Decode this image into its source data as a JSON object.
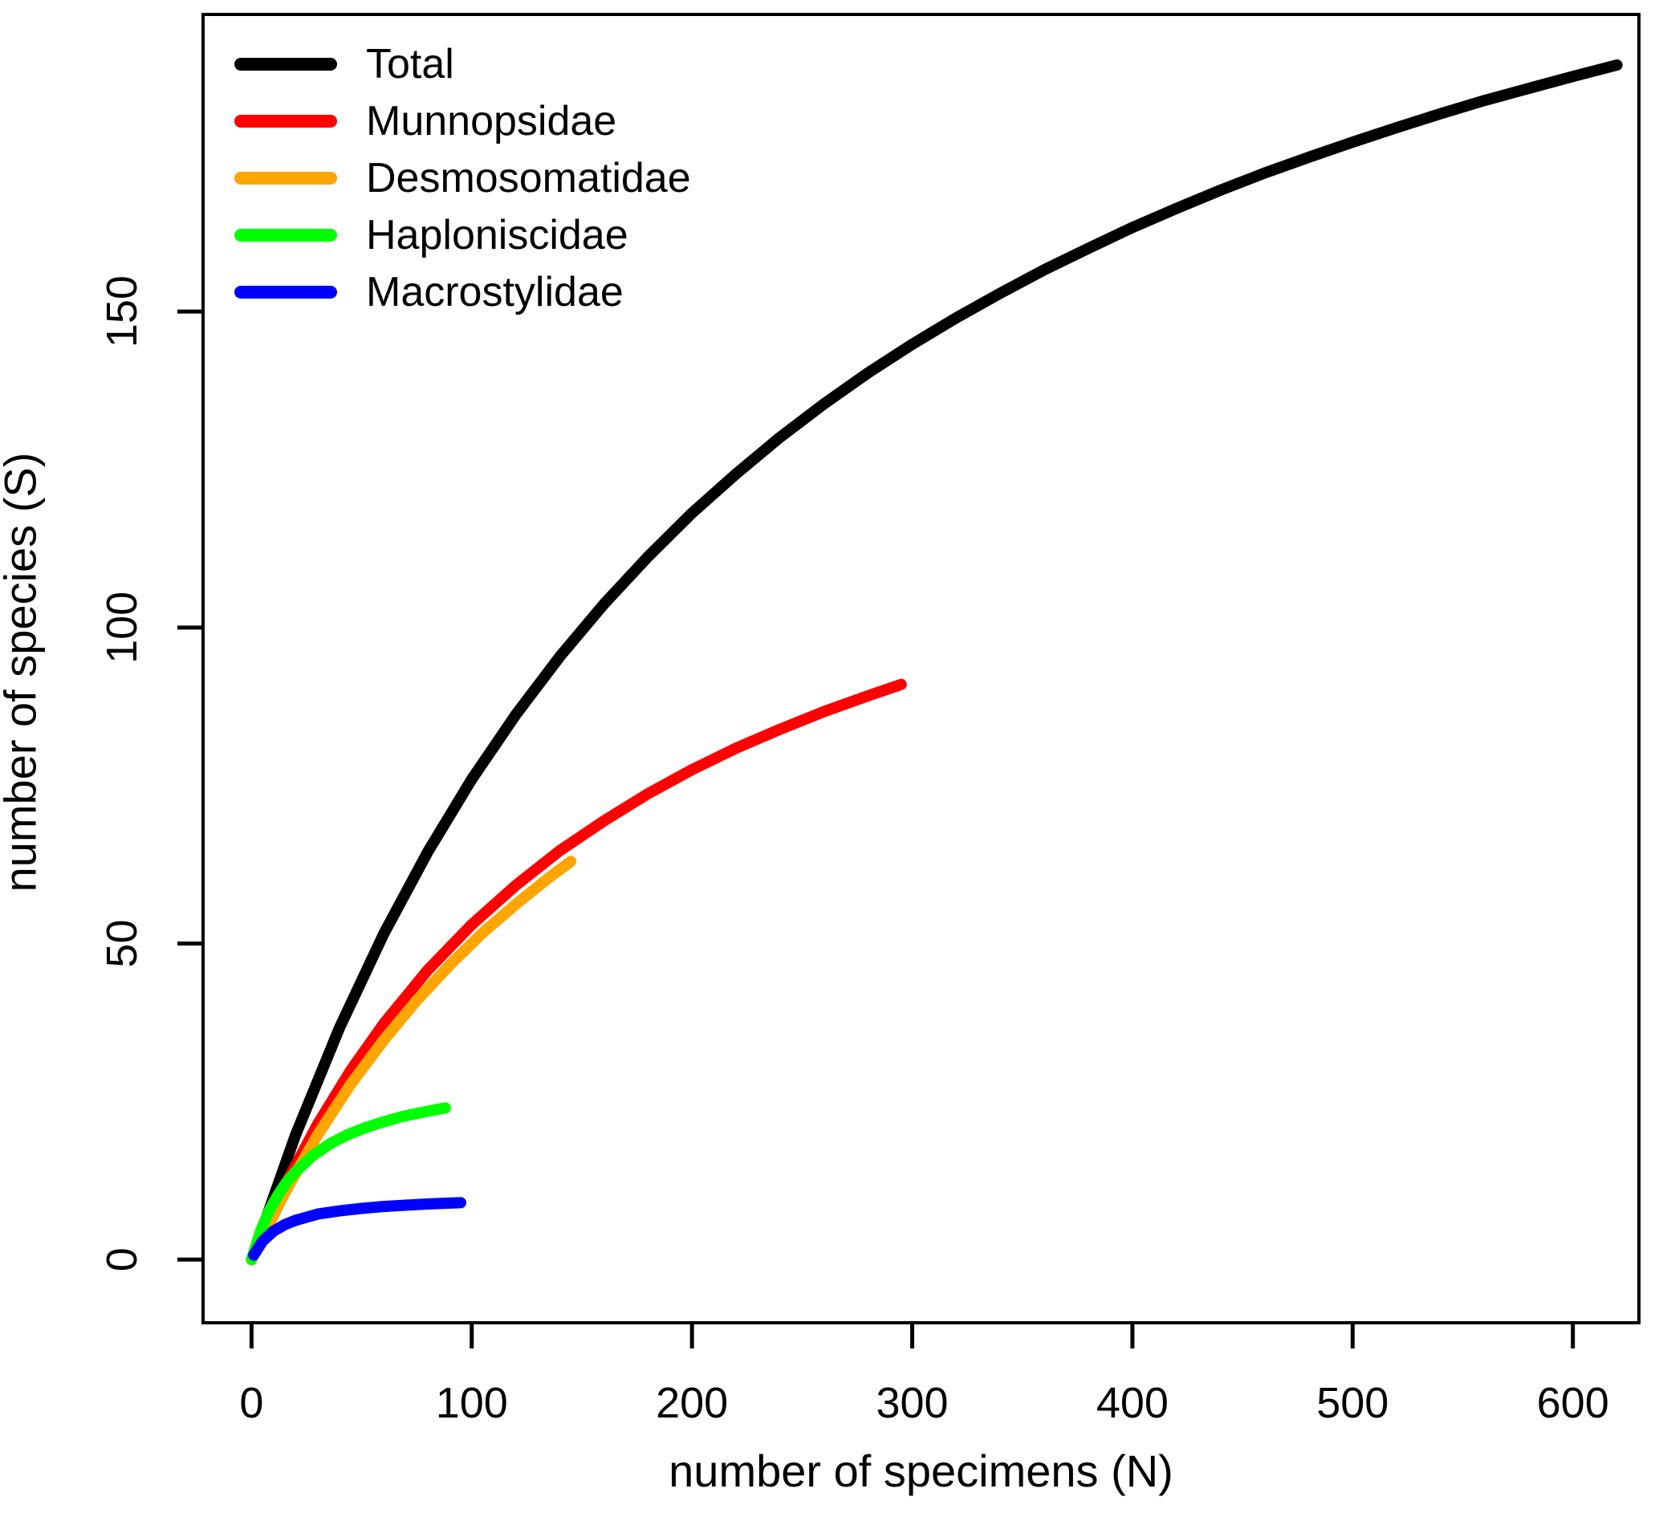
{
  "chart_data": {
    "type": "line",
    "title": "",
    "xlabel": "number of specimens (N)",
    "ylabel": "number of species (S)",
    "xlim": [
      -22,
      630
    ],
    "ylim": [
      -10,
      197
    ],
    "xticks": [
      0,
      100,
      200,
      300,
      400,
      500,
      600
    ],
    "yticks": [
      0,
      50,
      100,
      150
    ],
    "grid": false,
    "legend_position": "top-left",
    "series": [
      {
        "name": "Total",
        "color": "#000000",
        "points": [
          [
            0,
            0
          ],
          [
            20,
            19.7
          ],
          [
            40,
            36.7
          ],
          [
            60,
            51.5
          ],
          [
            80,
            64.5
          ],
          [
            100,
            76.0
          ],
          [
            120,
            86.2
          ],
          [
            140,
            95.4
          ],
          [
            160,
            103.7
          ],
          [
            180,
            111.2
          ],
          [
            200,
            118.1
          ],
          [
            220,
            124.3
          ],
          [
            240,
            130.1
          ],
          [
            260,
            135.4
          ],
          [
            280,
            140.3
          ],
          [
            300,
            144.8
          ],
          [
            320,
            149.0
          ],
          [
            340,
            152.9
          ],
          [
            360,
            156.6
          ],
          [
            380,
            160.0
          ],
          [
            400,
            163.3
          ],
          [
            420,
            166.3
          ],
          [
            440,
            169.2
          ],
          [
            460,
            171.9
          ],
          [
            480,
            174.4
          ],
          [
            500,
            176.8
          ],
          [
            520,
            179.1
          ],
          [
            540,
            181.3
          ],
          [
            560,
            183.4
          ],
          [
            580,
            185.3
          ],
          [
            600,
            187.2
          ],
          [
            620,
            189.0
          ]
        ]
      },
      {
        "name": "Munnopsidae",
        "color": "#FF0000",
        "points": [
          [
            0,
            0
          ],
          [
            15,
            11.6
          ],
          [
            30,
            21.4
          ],
          [
            45,
            29.9
          ],
          [
            60,
            37.3
          ],
          [
            80,
            45.8
          ],
          [
            100,
            53.0
          ],
          [
            120,
            59.2
          ],
          [
            140,
            64.7
          ],
          [
            160,
            69.4
          ],
          [
            180,
            73.7
          ],
          [
            200,
            77.5
          ],
          [
            220,
            80.9
          ],
          [
            240,
            83.9
          ],
          [
            260,
            86.7
          ],
          [
            280,
            89.2
          ],
          [
            295,
            91.0
          ]
        ]
      },
      {
        "name": "Desmosomatidae",
        "color": "#FFA500",
        "points": [
          [
            0,
            0
          ],
          [
            15,
            10.5
          ],
          [
            30,
            19.7
          ],
          [
            45,
            27.7
          ],
          [
            60,
            34.7
          ],
          [
            75,
            41.0
          ],
          [
            90,
            46.6
          ],
          [
            105,
            51.7
          ],
          [
            120,
            56.2
          ],
          [
            135,
            60.4
          ],
          [
            145,
            63.0
          ]
        ]
      },
      {
        "name": "Haploniscidae",
        "color": "#00FF00",
        "points": [
          [
            0,
            0
          ],
          [
            4,
            4.4
          ],
          [
            8,
            7.7
          ],
          [
            12,
            10.2
          ],
          [
            16,
            12.3
          ],
          [
            20,
            13.9
          ],
          [
            28,
            16.5
          ],
          [
            36,
            18.4
          ],
          [
            44,
            19.8
          ],
          [
            52,
            20.9
          ],
          [
            60,
            21.8
          ],
          [
            68,
            22.6
          ],
          [
            76,
            23.2
          ],
          [
            88,
            24.0
          ]
        ]
      },
      {
        "name": "Macrostylidae",
        "color": "#0000FF",
        "points": [
          [
            1,
            0.7
          ],
          [
            5,
            2.9
          ],
          [
            10,
            4.5
          ],
          [
            15,
            5.5
          ],
          [
            20,
            6.2
          ],
          [
            30,
            7.2
          ],
          [
            40,
            7.7
          ],
          [
            50,
            8.1
          ],
          [
            60,
            8.4
          ],
          [
            70,
            8.6
          ],
          [
            80,
            8.8
          ],
          [
            95,
            9.0
          ]
        ]
      }
    ]
  }
}
